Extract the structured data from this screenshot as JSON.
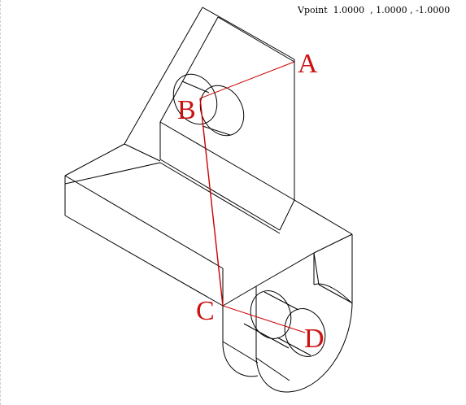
{
  "view": {
    "vpoint_text": "Vpoint  1.0000  , 1.0000 , -1.0000"
  },
  "colors": {
    "wire": "#000000",
    "path": "#cc0000",
    "label": "#cc1111"
  },
  "points": [
    {
      "id": "A",
      "label": "A"
    },
    {
      "id": "B",
      "label": "B"
    },
    {
      "id": "C",
      "label": "C"
    },
    {
      "id": "D",
      "label": "D"
    }
  ]
}
